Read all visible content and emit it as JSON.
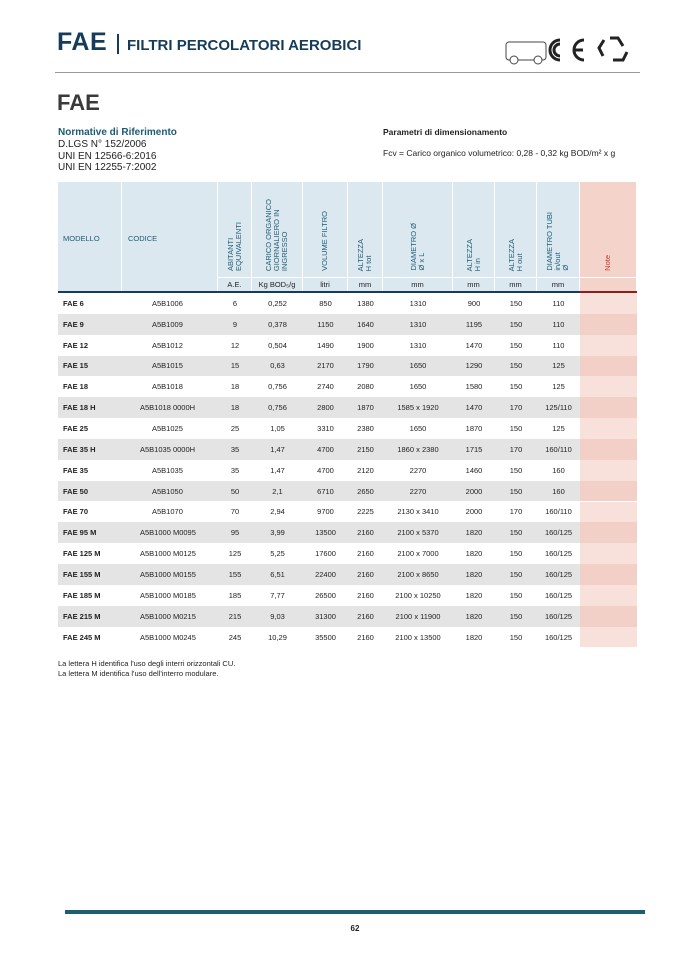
{
  "header": {
    "brand": "FAE",
    "title": "FILTRI PERCOLATORI AEROBICI"
  },
  "section_title": "FAE",
  "normative": {
    "title": "Normative di Riferimento",
    "items": [
      "D.LGS N° 152/2006",
      "UNI EN 12566-6:2016",
      "UNI EN 12255-7:2002"
    ]
  },
  "parameters": {
    "title": "Parametri di dimensionamento",
    "text": "Fcv = Carico organico volumetrico: 0,28 - 0,32 kg BOD/m² x g"
  },
  "table": {
    "columns": [
      {
        "label": [
          "MODELLO"
        ]
      },
      {
        "label": [
          "CODICE"
        ]
      },
      {
        "label": [
          "ABITANTI",
          "EQUIVALENTI"
        ],
        "unit": "A.E."
      },
      {
        "label": [
          "CARICO ORGANICO",
          "GIORNALIERO IN",
          "INGRESSO"
        ],
        "unit": "Kg BOD₅/g"
      },
      {
        "label": [
          "VOLUME FILTRO"
        ],
        "unit": "litri"
      },
      {
        "label": [
          "ALTEZZA",
          "H tot"
        ],
        "unit": "mm"
      },
      {
        "label": [
          "DIAMETRO Ø",
          "Ø x L"
        ],
        "unit": "mm"
      },
      {
        "label": [
          "ALTEZZA",
          "H in"
        ],
        "unit": "mm"
      },
      {
        "label": [
          "ALTEZZA",
          "H out"
        ],
        "unit": "mm"
      },
      {
        "label": [
          "DIAMETRO TUBI",
          "in/out",
          "Ø"
        ],
        "unit": "mm"
      },
      {
        "label": [
          "Note"
        ]
      }
    ],
    "rows": [
      [
        "FAE 6",
        "A5B1006",
        "6",
        "0,252",
        "850",
        "1380",
        "1310",
        "900",
        "150",
        "110"
      ],
      [
        "FAE 9",
        "A5B1009",
        "9",
        "0,378",
        "1150",
        "1640",
        "1310",
        "1195",
        "150",
        "110"
      ],
      [
        "FAE 12",
        "A5B1012",
        "12",
        "0,504",
        "1490",
        "1900",
        "1310",
        "1470",
        "150",
        "110"
      ],
      [
        "FAE 15",
        "A5B1015",
        "15",
        "0,63",
        "2170",
        "1790",
        "1650",
        "1290",
        "150",
        "125"
      ],
      [
        "FAE 18",
        "A5B1018",
        "18",
        "0,756",
        "2740",
        "2080",
        "1650",
        "1580",
        "150",
        "125"
      ],
      [
        "FAE 18 H",
        "A5B1018 0000H",
        "18",
        "0,756",
        "2800",
        "1870",
        "1585 x 1920",
        "1470",
        "170",
        "125/110"
      ],
      [
        "FAE 25",
        "A5B1025",
        "25",
        "1,05",
        "3310",
        "2380",
        "1650",
        "1870",
        "150",
        "125"
      ],
      [
        "FAE 35 H",
        "A5B1035 0000H",
        "35",
        "1,47",
        "4700",
        "2150",
        "1860 x 2380",
        "1715",
        "170",
        "160/110"
      ],
      [
        "FAE 35",
        "A5B1035",
        "35",
        "1,47",
        "4700",
        "2120",
        "2270",
        "1460",
        "150",
        "160"
      ],
      [
        "FAE 50",
        "A5B1050",
        "50",
        "2,1",
        "6710",
        "2650",
        "2270",
        "2000",
        "150",
        "160"
      ],
      [
        "FAE 70",
        "A5B1070",
        "70",
        "2,94",
        "9700",
        "2225",
        "2130 x 3410",
        "2000",
        "170",
        "160/110"
      ],
      [
        "FAE 95 M",
        "A5B1000 M0095",
        "95",
        "3,99",
        "13500",
        "2160",
        "2100 x 5370",
        "1820",
        "150",
        "160/125"
      ],
      [
        "FAE 125 M",
        "A5B1000 M0125",
        "125",
        "5,25",
        "17600",
        "2160",
        "2100 x 7000",
        "1820",
        "150",
        "160/125"
      ],
      [
        "FAE 155 M",
        "A5B1000 M0155",
        "155",
        "6,51",
        "22400",
        "2160",
        "2100 x 8650",
        "1820",
        "150",
        "160/125"
      ],
      [
        "FAE 185 M",
        "A5B1000 M0185",
        "185",
        "7,77",
        "26500",
        "2160",
        "2100 x 10250",
        "1820",
        "150",
        "160/125"
      ],
      [
        "FAE 215 M",
        "A5B1000 M0215",
        "215",
        "9,03",
        "31300",
        "2160",
        "2100 x 11900",
        "1820",
        "150",
        "160/125"
      ],
      [
        "FAE 245 M",
        "A5B1000 M0245",
        "245",
        "10,29",
        "35500",
        "2160",
        "2100 x 13500",
        "1820",
        "150",
        "160/125"
      ]
    ]
  },
  "footnotes": [
    "La lettera H identifica l'uso degli interri orizzontali CU.",
    "La lettera M identifica l'uso dell'interro modulare."
  ],
  "page_number": "62"
}
